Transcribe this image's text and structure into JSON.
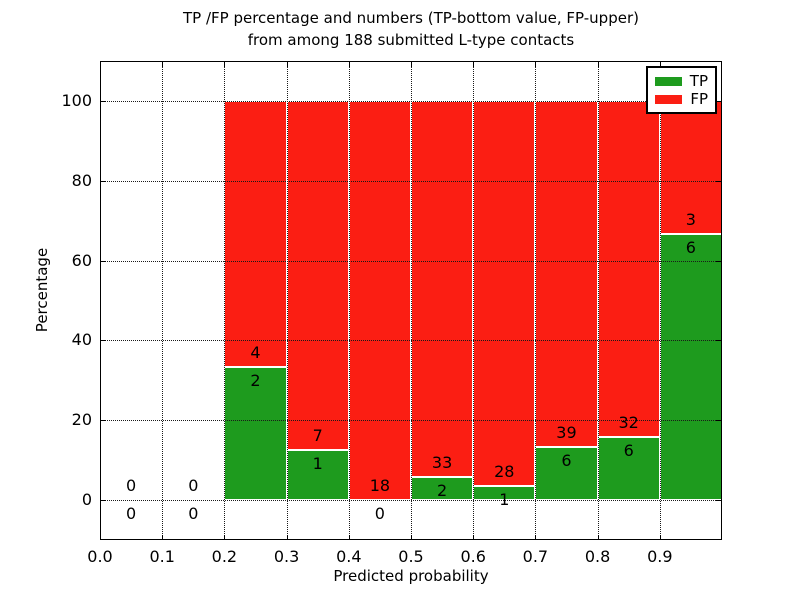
{
  "chart_data": {
    "type": "bar",
    "stacked": true,
    "title_line1": "TP /FP percentage and numbers (TP-bottom value, FP-upper)",
    "title_line2": "from among 188 submitted L-type contacts",
    "xlabel": "Predicted probability",
    "ylabel": "Percentage",
    "xlim": [
      0.0,
      1.0
    ],
    "ylim": [
      -10,
      110
    ],
    "x_ticks": [
      "0.0",
      "0.1",
      "0.2",
      "0.3",
      "0.4",
      "0.5",
      "0.6",
      "0.7",
      "0.8",
      "0.9"
    ],
    "y_ticks": [
      0,
      20,
      40,
      60,
      80,
      100
    ],
    "grid": true,
    "legend_position": "upper right",
    "legend": [
      {
        "label": "TP",
        "color_key": "tp"
      },
      {
        "label": "FP",
        "color_key": "fp"
      }
    ],
    "colors": {
      "tp": "#1e9b1e",
      "fp": "#fb1e13"
    },
    "total_contacts": 188,
    "bins": [
      {
        "range": [
          0.0,
          0.1
        ],
        "tp": 0,
        "fp": 0
      },
      {
        "range": [
          0.1,
          0.2
        ],
        "tp": 0,
        "fp": 0
      },
      {
        "range": [
          0.2,
          0.3
        ],
        "tp": 2,
        "fp": 4
      },
      {
        "range": [
          0.3,
          0.4
        ],
        "tp": 1,
        "fp": 7
      },
      {
        "range": [
          0.4,
          0.5
        ],
        "tp": 0,
        "fp": 18
      },
      {
        "range": [
          0.5,
          0.6
        ],
        "tp": 2,
        "fp": 33
      },
      {
        "range": [
          0.6,
          0.7
        ],
        "tp": 1,
        "fp": 28
      },
      {
        "range": [
          0.7,
          0.8
        ],
        "tp": 6,
        "fp": 39
      },
      {
        "range": [
          0.8,
          0.9
        ],
        "tp": 6,
        "fp": 32
      },
      {
        "range": [
          0.9,
          1.0
        ],
        "tp": 6,
        "fp": 3
      }
    ]
  }
}
